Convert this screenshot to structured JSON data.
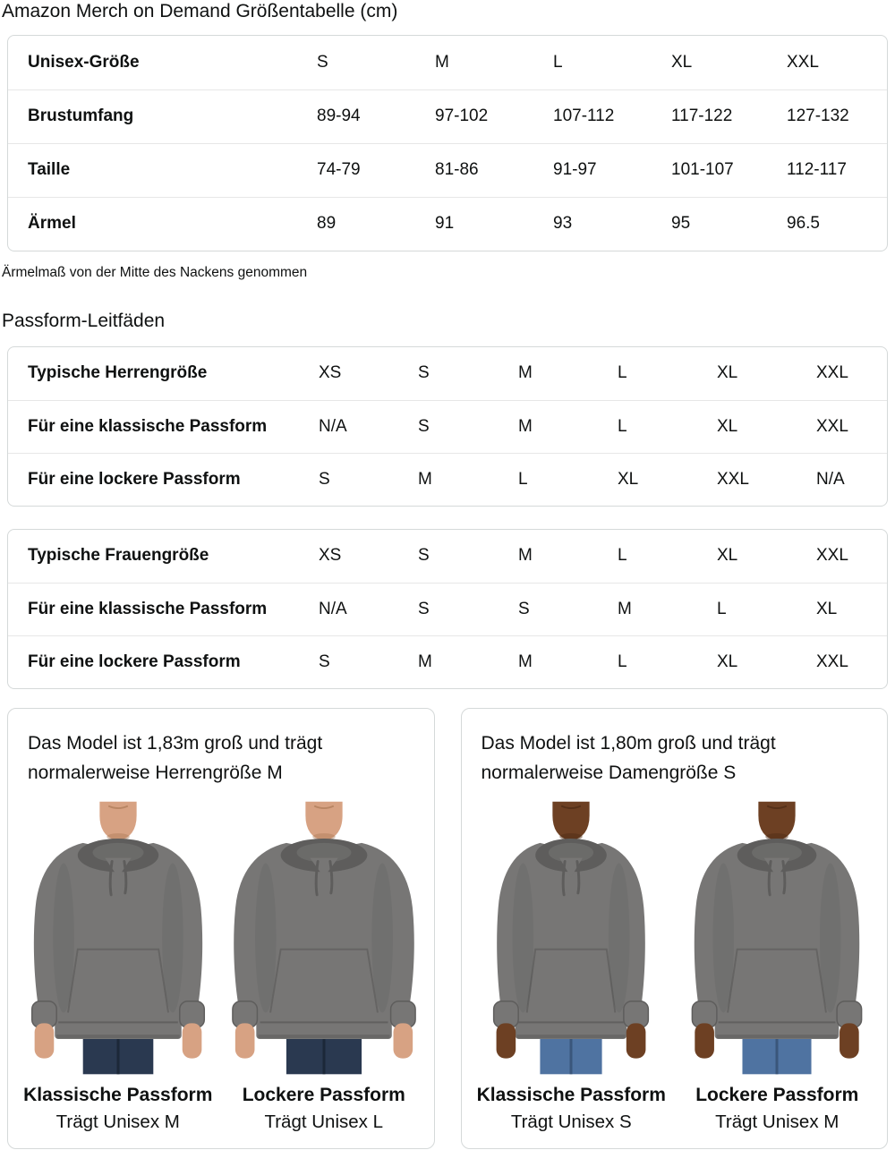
{
  "page": {
    "title": "Amazon Merch on Demand Größentabelle (cm)",
    "note": "Ärmelmaß von der Mitte des Nackens genommen",
    "fit_heading": "Passform-Leitfäden"
  },
  "tables": {
    "size_table": {
      "rows": [
        {
          "label": "Unisex-Größe",
          "values": [
            "S",
            "M",
            "L",
            "XL",
            "XXL"
          ]
        },
        {
          "label": "Brustumfang",
          "values": [
            "89-94",
            "97-102",
            "107-112",
            "117-122",
            "127-132"
          ]
        },
        {
          "label": "Taille",
          "values": [
            "74-79",
            "81-86",
            "91-97",
            "101-107",
            "112-117"
          ]
        },
        {
          "label": "Ärmel",
          "values": [
            "89",
            "91",
            "93",
            "95",
            "96.5"
          ]
        }
      ]
    },
    "men_fit_table": {
      "rows": [
        {
          "label": "Typische Herrengröße",
          "values": [
            "XS",
            "S",
            "M",
            "L",
            "XL",
            "XXL"
          ]
        },
        {
          "label": "Für eine klassische Passform",
          "values": [
            "N/A",
            "S",
            "M",
            "L",
            "XL",
            "XXL"
          ]
        },
        {
          "label": "Für eine lockere Passform",
          "values": [
            "S",
            "M",
            "L",
            "XL",
            "XXL",
            "N/A"
          ]
        }
      ]
    },
    "women_fit_table": {
      "rows": [
        {
          "label": "Typische Frauengröße",
          "values": [
            "XS",
            "S",
            "M",
            "L",
            "XL",
            "XXL"
          ]
        },
        {
          "label": "Für eine klassische Passform",
          "values": [
            "N/A",
            "S",
            "S",
            "M",
            "L",
            "XL"
          ]
        },
        {
          "label": "Für eine lockere Passform",
          "values": [
            "S",
            "M",
            "M",
            "L",
            "XL",
            "XXL"
          ]
        }
      ]
    }
  },
  "model_cards": [
    {
      "description": "Das Model ist 1,83m groß und trägt normalerweise Herrengröße M",
      "models": [
        {
          "photo_name": "male-model-classic-fit-hoodie-photo",
          "fit_label": "Klassische Passform",
          "size_label": "Trägt Unisex M",
          "width_factor": 1.0,
          "skin": "#d7a283",
          "skin_dark": "#ad7b57",
          "jeans": "#2a3950",
          "jeans_dark": "#1c2838"
        },
        {
          "photo_name": "male-model-loose-fit-hoodie-photo",
          "fit_label": "Lockere Passform",
          "size_label": "Trägt Unisex L",
          "width_factor": 1.07,
          "skin": "#d7a283",
          "skin_dark": "#ad7b57",
          "jeans": "#2a3950",
          "jeans_dark": "#1c2838"
        }
      ]
    },
    {
      "description": "Das Model ist 1,80m groß und trägt normalerweise Damengröße S",
      "models": [
        {
          "photo_name": "female-model-classic-fit-hoodie-photo",
          "fit_label": "Klassische Passform",
          "size_label": "Trägt Unisex S",
          "width_factor": 0.88,
          "skin": "#6d4023",
          "skin_dark": "#4c2a14",
          "jeans": "#4f73a1",
          "jeans_dark": "#3a567b"
        },
        {
          "photo_name": "female-model-loose-fit-hoodie-photo",
          "fit_label": "Lockere Passform",
          "size_label": "Trägt Unisex M",
          "width_factor": 0.98,
          "skin": "#6d4023",
          "skin_dark": "#4c2a14",
          "jeans": "#4f73a1",
          "jeans_dark": "#3a567b"
        }
      ]
    }
  ],
  "colors": {
    "text": "#0f1111",
    "table_border": "#d5d9d9",
    "row_divider": "#e7e7e7",
    "hoodie": "#777675",
    "hoodie_dark": "#5e5d5c"
  }
}
